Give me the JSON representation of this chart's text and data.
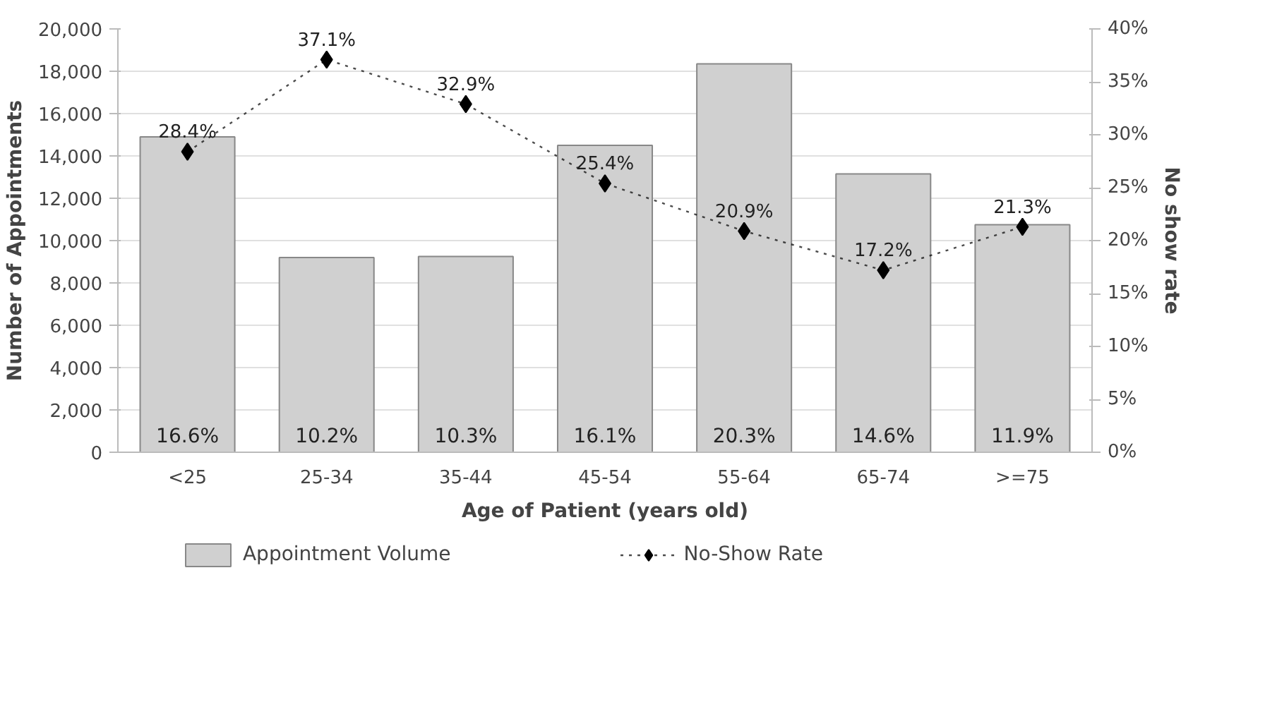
{
  "chart_data": {
    "type": "bar",
    "xlabel": "Age of Patient (years old)",
    "ylabel": "Number of Appointments",
    "y2label": "No show rate",
    "categories": [
      "<25",
      "25-34",
      "35-44",
      "45-54",
      "55-64",
      "65-74",
      ">=75"
    ],
    "series": [
      {
        "name": "Appointment Volume",
        "color": "#d0d0d0",
        "values": [
          14900,
          9200,
          9250,
          14500,
          18350,
          13150,
          10750
        ]
      },
      {
        "name": "No-Show Rate",
        "type": "line",
        "axis": "y2",
        "color": "#000000",
        "marker": "diamond",
        "line_style": "dotted",
        "values": [
          28.4,
          37.1,
          32.9,
          25.4,
          20.9,
          17.2,
          21.3
        ],
        "value_labels": [
          "28.4%",
          "37.1%",
          "32.9%",
          "25.4%",
          "20.9%",
          "17.2%",
          "21.3%"
        ]
      }
    ],
    "ylim": [
      0,
      20000
    ],
    "yticks": [
      {
        "value": 0,
        "label": "0"
      },
      {
        "value": 2000,
        "label": "2,000"
      },
      {
        "value": 4000,
        "label": "4,000"
      },
      {
        "value": 6000,
        "label": "6,000"
      },
      {
        "value": 8000,
        "label": "8,000"
      },
      {
        "value": 10000,
        "label": "10,000"
      },
      {
        "value": 12000,
        "label": "12,000"
      },
      {
        "value": 14000,
        "label": "14,000"
      },
      {
        "value": 16000,
        "label": "16,000"
      },
      {
        "value": 18000,
        "label": "18,000"
      },
      {
        "value": 20000,
        "label": "20,000"
      }
    ],
    "y2lim": [
      0,
      40
    ],
    "y2ticks": [
      {
        "value": 0,
        "label": "0%"
      },
      {
        "value": 5,
        "label": "5%"
      },
      {
        "value": 10,
        "label": "10%"
      },
      {
        "value": 15,
        "label": "15%"
      },
      {
        "value": 20,
        "label": "20%"
      },
      {
        "value": 25,
        "label": "25%"
      },
      {
        "value": 30,
        "label": "30%"
      },
      {
        "value": 35,
        "label": "35%"
      },
      {
        "value": 40,
        "label": "40%"
      }
    ],
    "annotations": [
      {
        "text": "16.6%",
        "x": "<25",
        "y": 0
      },
      {
        "text": "10.2%",
        "x": "25-34",
        "y": 0
      },
      {
        "text": "10.3%",
        "x": "35-44",
        "y": 0
      },
      {
        "text": "16.1%",
        "x": "45-54",
        "y": 0
      },
      {
        "text": "20.3%",
        "x": "55-64",
        "y": 0
      },
      {
        "text": "14.6%",
        "x": "65-74",
        "y": 0
      },
      {
        "text": "11.9%",
        "x": ">=75",
        "y": 0
      }
    ],
    "grid": "y",
    "legend": "bottom"
  }
}
